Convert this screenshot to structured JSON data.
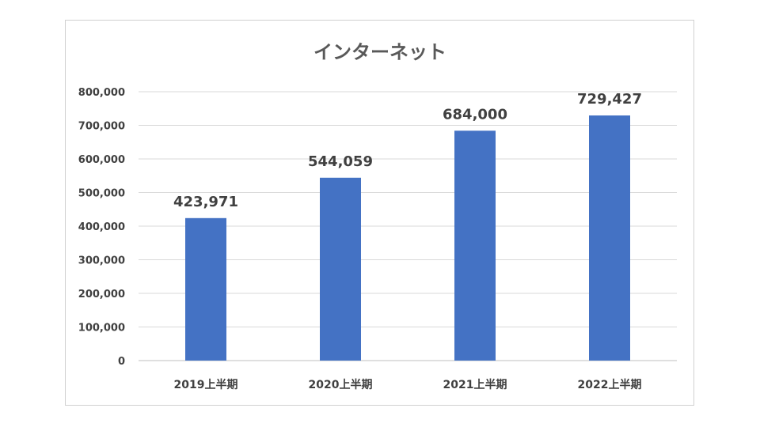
{
  "chart_data": {
    "type": "bar",
    "title": "インターネット",
    "categories": [
      "2019上半期",
      "2020上半期",
      "2021上半期",
      "2022上半期"
    ],
    "values": [
      423971,
      544059,
      684000,
      729427
    ],
    "data_labels": [
      "423,971",
      "544,059",
      "684,000",
      "729,427"
    ],
    "ylim": [
      0,
      800000
    ],
    "yticks": [
      "0",
      "100,000",
      "200,000",
      "300,000",
      "400,000",
      "500,000",
      "600,000",
      "700,000",
      "800,000"
    ],
    "bar_color": "#4472C4",
    "grid": true,
    "legend": "none"
  }
}
